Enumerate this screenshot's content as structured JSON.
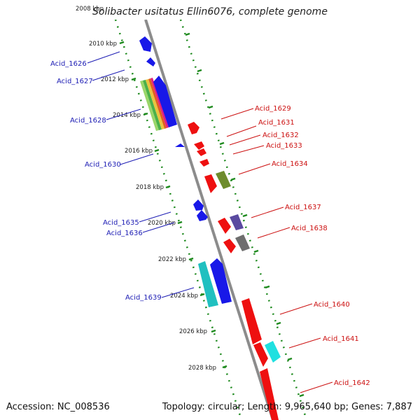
{
  "title": "Solibacter usitatus Ellin6076, complete genome",
  "footer": {
    "accession": "Accession: NC_008536",
    "summary": "Topology: circular; Length: 9,965,640 bp; Genes: 7,887"
  },
  "colors": {
    "reverse_strand_label": "#1c1cb4",
    "forward_strand_label": "#cc1010",
    "backbone": "#8c8c8c",
    "scale_dots": "#1e8a1e"
  },
  "axis": {
    "unit": "kbp",
    "ticks": [
      "2008 kbp",
      "2010 kbp",
      "2012 kbp",
      "2014 kbp",
      "2016 kbp",
      "2018 kbp",
      "2020 kbp",
      "2022 kbp",
      "2024 kbp",
      "2026 kbp",
      "2028 kbp"
    ]
  },
  "reverse_labels": [
    "Acid_1626",
    "Acid_1627",
    "Acid_1628",
    "Acid_1630",
    "Acid_1635",
    "Acid_1636",
    "Acid_1639"
  ],
  "forward_labels": [
    "Acid_1629",
    "Acid_1631",
    "Acid_1632",
    "Acid_1633",
    "Acid_1634",
    "Acid_1637",
    "Acid_1638",
    "Acid_1640",
    "Acid_1641",
    "Acid_1642"
  ]
}
